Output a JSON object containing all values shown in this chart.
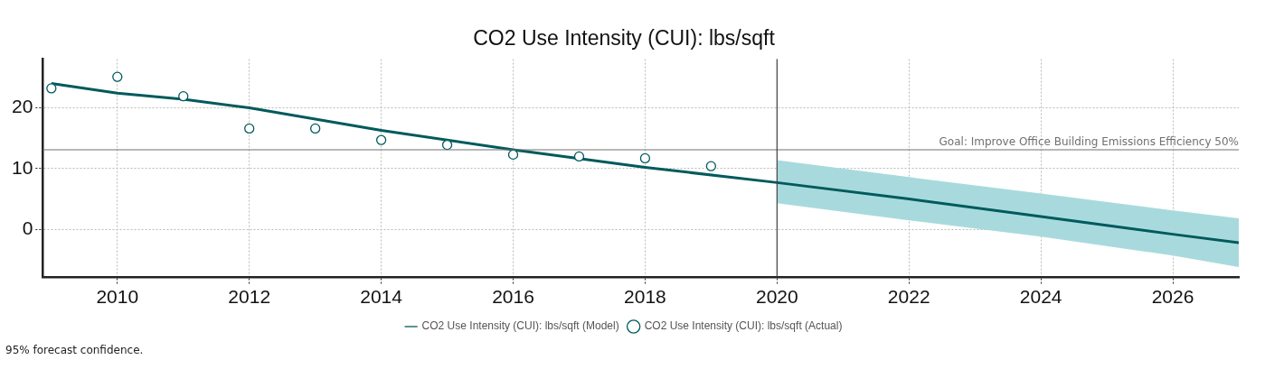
{
  "chart_data": {
    "type": "line",
    "title": "CO2 Use Intensity (CUI): lbs/sqft",
    "xlim": [
      2008.87,
      2027
    ],
    "xticks": [
      2010,
      2012,
      2014,
      2016,
      2018,
      2020,
      2022,
      2024,
      2026
    ],
    "ylim": [
      -7.8,
      28
    ],
    "yticks": [
      0,
      10,
      20
    ],
    "grid": true,
    "legend": "bottom",
    "series": [
      {
        "name": "CO2 Use Intensity (CUI): lbs/sqft (Model)",
        "marker": "none",
        "color": "#005a5c",
        "x": [
          2009,
          2010,
          2011,
          2012,
          2014,
          2016,
          2018,
          2020,
          2022,
          2024,
          2026,
          2027
        ],
        "values": [
          24.0,
          22.4,
          21.4,
          20.0,
          16.3,
          13.1,
          10.2,
          7.7,
          5.0,
          2.1,
          -0.8,
          -2.2
        ],
        "lower": [
          null,
          null,
          null,
          null,
          null,
          null,
          null,
          4.3,
          1.5,
          -1.2,
          -4.3,
          -6.2
        ],
        "upper": [
          null,
          null,
          null,
          null,
          null,
          null,
          null,
          11.4,
          8.6,
          5.9,
          3.1,
          1.8
        ]
      },
      {
        "name": "CO2 Use Intensity (CUI): lbs/sqft (Actual)",
        "type": "scatter",
        "marker": "circle",
        "color": "#005a5c",
        "x": [
          2009,
          2010,
          2011,
          2012,
          2013,
          2014,
          2015,
          2016,
          2017,
          2018,
          2019
        ],
        "values": [
          23.2,
          25.1,
          21.9,
          16.6,
          16.6,
          14.7,
          13.9,
          12.3,
          12.0,
          11.7,
          10.4
        ]
      }
    ],
    "ref_lines": [
      {
        "axis": "y",
        "value": 13.1,
        "label": "Goal: Improve Office Building Emissions Efficiency 50%",
        "color": "#707070"
      },
      {
        "axis": "x",
        "value": 2020,
        "label": null,
        "color": "#404040"
      }
    ],
    "annotations": [
      "95% forecast confidence."
    ]
  }
}
